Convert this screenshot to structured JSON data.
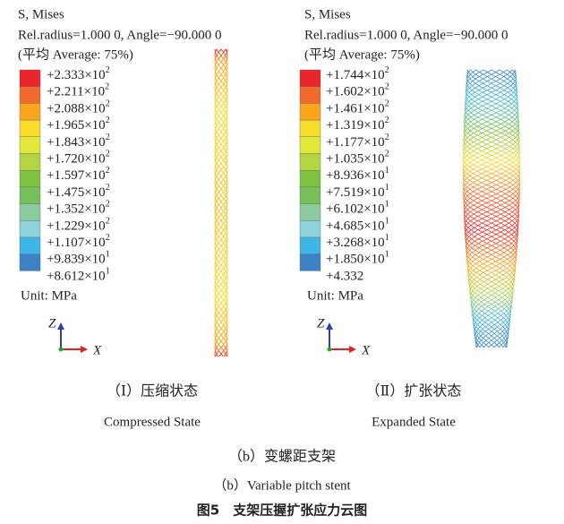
{
  "panels": [
    {
      "field": "S, Mises",
      "location": "Rel.radius=1.000 0, Angle=−90.000 0",
      "average": "(平均 Average: 75%)",
      "legend": [
        {
          "mantissa": "+2.333",
          "base": "×10",
          "exp": "2"
        },
        {
          "mantissa": "+2.211",
          "base": "×10",
          "exp": "2"
        },
        {
          "mantissa": "+2.088",
          "base": "×10",
          "exp": "2"
        },
        {
          "mantissa": "+1.965",
          "base": "×10",
          "exp": "2"
        },
        {
          "mantissa": "+1.843",
          "base": "×10",
          "exp": "2"
        },
        {
          "mantissa": "+1.720",
          "base": "×10",
          "exp": "2"
        },
        {
          "mantissa": "+1.597",
          "base": "×10",
          "exp": "2"
        },
        {
          "mantissa": "+1.475",
          "base": "×10",
          "exp": "2"
        },
        {
          "mantissa": "+1.352",
          "base": "×10",
          "exp": "2"
        },
        {
          "mantissa": "+1.229",
          "base": "×10",
          "exp": "2"
        },
        {
          "mantissa": "+1.107",
          "base": "×10",
          "exp": "2"
        },
        {
          "mantissa": "+9.839",
          "base": "×10",
          "exp": "1"
        },
        {
          "mantissa": "+8.612",
          "base": "×10",
          "exp": "1"
        }
      ],
      "band_colors": [
        "#e8262b",
        "#f26a2b",
        "#f9a51e",
        "#f7dc2a",
        "#e2e83a",
        "#b4d444",
        "#7fc242",
        "#78bf5c",
        "#8ccaa0",
        "#8ed3dc",
        "#3fb6e8",
        "#3c82c4",
        "#2f5aa8"
      ],
      "unit": "Unit: MPa",
      "axis_z": "Z",
      "axis_x": "X",
      "caption_cn": "（Ⅰ）压缩状态",
      "caption_en": "Compressed State"
    },
    {
      "field": "S, Mises",
      "location": "Rel.radius=1.000 0, Angle=−90.000 0",
      "average": "(平均 Average: 75%)",
      "legend": [
        {
          "mantissa": "+1.744",
          "base": "×10",
          "exp": "2"
        },
        {
          "mantissa": "+1.602",
          "base": "×10",
          "exp": "2"
        },
        {
          "mantissa": "+1.461",
          "base": "×10",
          "exp": "2"
        },
        {
          "mantissa": "+1.319",
          "base": "×10",
          "exp": "2"
        },
        {
          "mantissa": "+1.177",
          "base": "×10",
          "exp": "2"
        },
        {
          "mantissa": "+1.035",
          "base": "×10",
          "exp": "2"
        },
        {
          "mantissa": "+8.936",
          "base": "×10",
          "exp": "1"
        },
        {
          "mantissa": "+7.519",
          "base": "×10",
          "exp": "1"
        },
        {
          "mantissa": "+6.102",
          "base": "×10",
          "exp": "1"
        },
        {
          "mantissa": "+4.685",
          "base": "×10",
          "exp": "1"
        },
        {
          "mantissa": "+3.268",
          "base": "×10",
          "exp": "1"
        },
        {
          "mantissa": "+1.850",
          "base": "×10",
          "exp": "1"
        },
        {
          "mantissa": "+4.332"
        }
      ],
      "band_colors": [
        "#e8262b",
        "#f26a2b",
        "#f9a51e",
        "#f7dc2a",
        "#e2e83a",
        "#b4d444",
        "#7fc242",
        "#78bf5c",
        "#8ccaa0",
        "#8ed3dc",
        "#3fb6e8",
        "#3c82c4",
        "#2f5aa8"
      ],
      "unit": "Unit: MPa",
      "axis_z": "Z",
      "axis_x": "X",
      "caption_cn": "（Ⅱ）扩张状态",
      "caption_en": "Expanded State"
    }
  ],
  "subfigure_cn": "（b）变螺距支架",
  "subfigure_en": "（b）Variable pitch stent",
  "figure_title": "图5　支架压握扩张应力云图"
}
